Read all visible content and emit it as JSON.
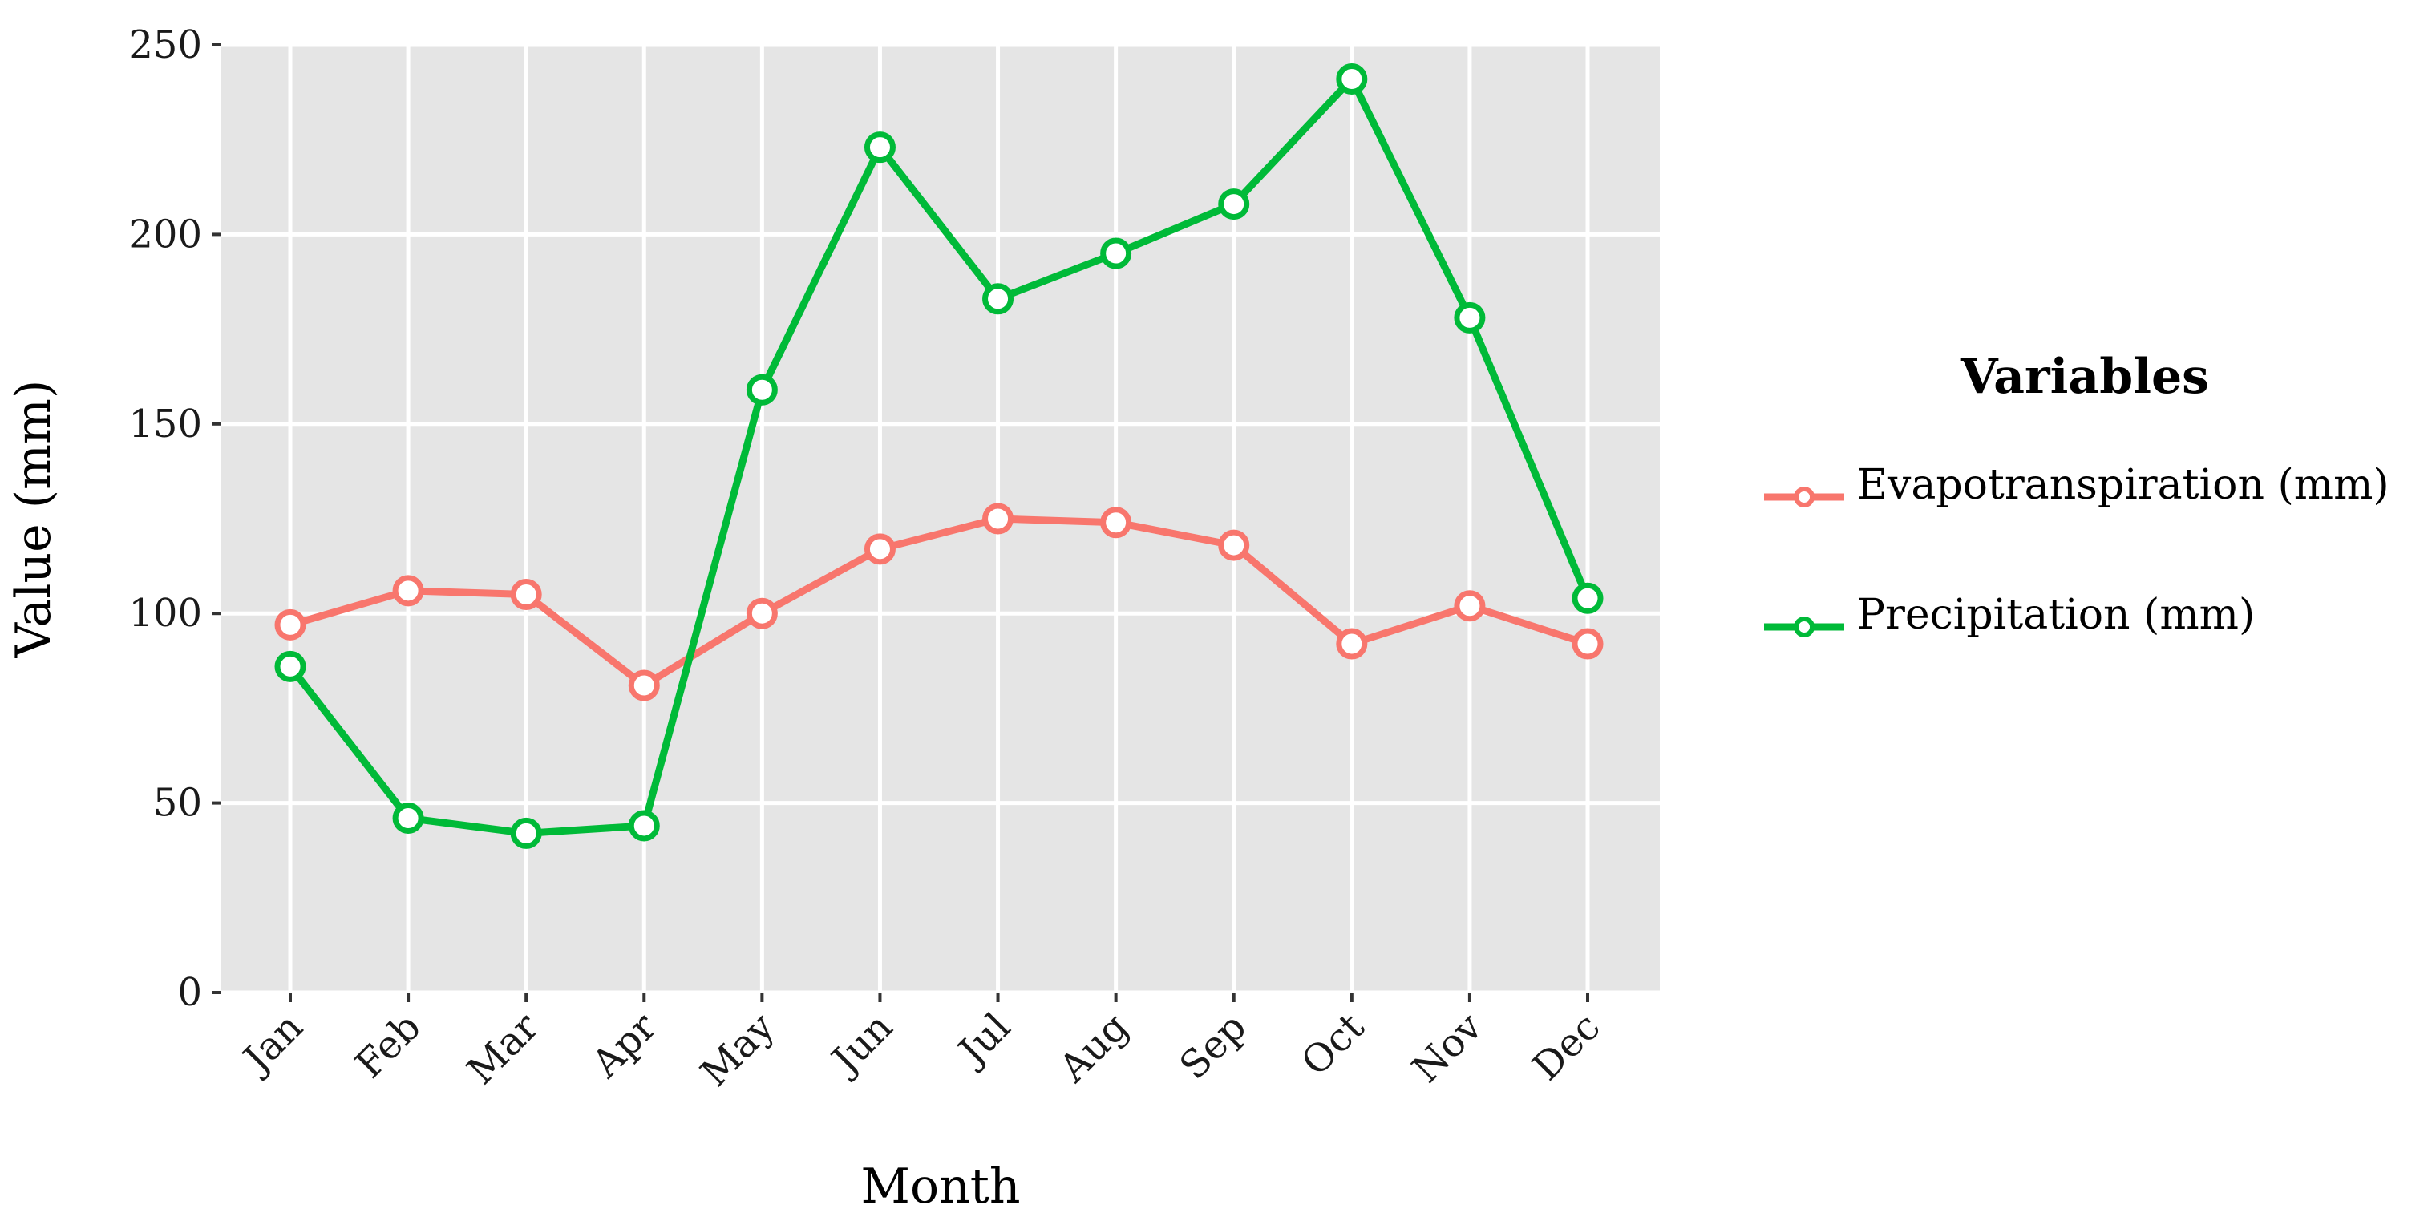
{
  "chart_data": {
    "type": "line",
    "title": "",
    "xlabel": "Month",
    "ylabel": "Value (mm)",
    "categories": [
      "Jan",
      "Feb",
      "Mar",
      "Apr",
      "May",
      "Jun",
      "Jul",
      "Aug",
      "Sep",
      "Oct",
      "Nov",
      "Dec"
    ],
    "ylim": [
      0,
      250
    ],
    "yticks": [
      "0",
      "50",
      "100",
      "150",
      "200",
      "250"
    ],
    "grid": true,
    "legend": {
      "title": "Variables",
      "placement": "right"
    },
    "series": [
      {
        "name": "Evapotranspiration (mm)",
        "color": "#F8766D",
        "values": [
          97,
          106,
          105,
          81,
          100,
          117,
          125,
          124,
          118,
          92,
          102,
          92
        ]
      },
      {
        "name": "Precipitation (mm)",
        "color": "#00BA38",
        "values": [
          86,
          46,
          42,
          44,
          159,
          223,
          183,
          195,
          208,
          241,
          178,
          104
        ]
      }
    ],
    "panel_background": "#E5E5E5"
  }
}
